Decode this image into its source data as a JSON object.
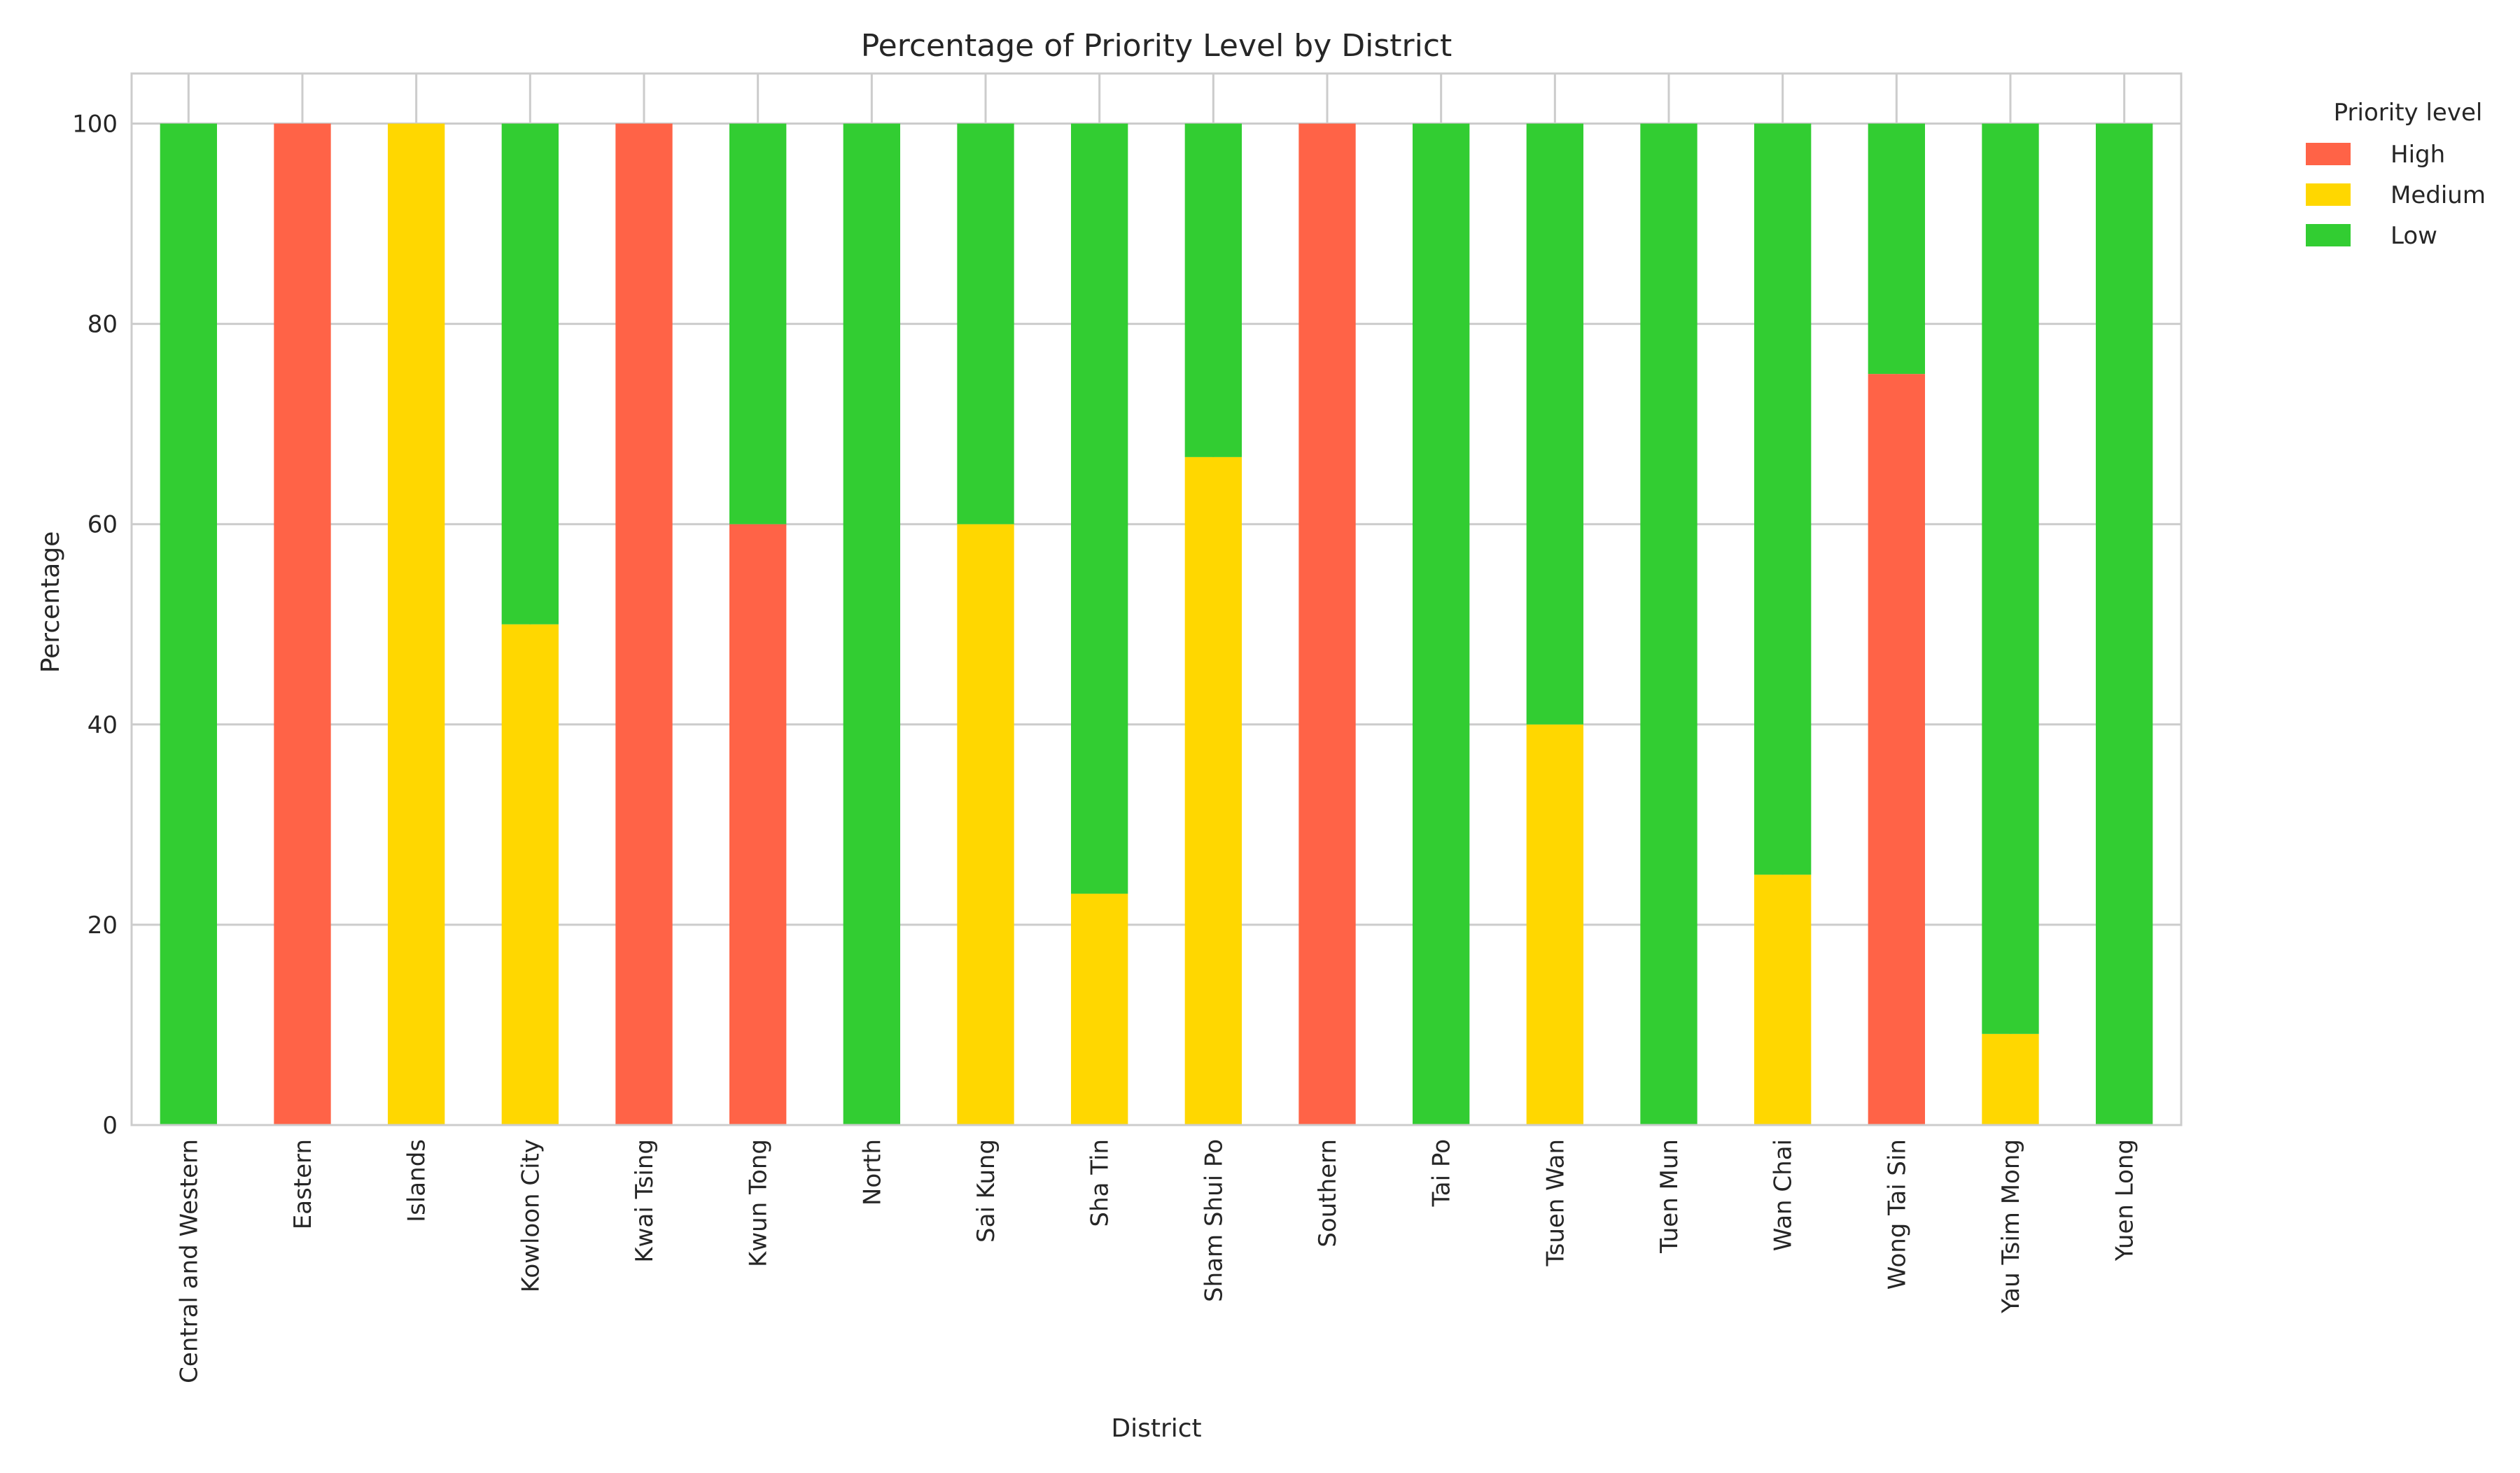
{
  "chart_data": {
    "type": "bar",
    "stacked": true,
    "title": "Percentage of Priority Level by District",
    "xlabel": "District",
    "ylabel": "Percentage",
    "ylim": [
      0,
      105
    ],
    "yticks": [
      0,
      20,
      40,
      60,
      80,
      100
    ],
    "grid": true,
    "legend": {
      "title": "Priority level",
      "placement": "outside-top-right"
    },
    "categories": [
      "Central and Western",
      "Eastern",
      "Islands",
      "Kowloon City",
      "Kwai Tsing",
      "Kwun Tong",
      "North",
      "Sai Kung",
      "Sha Tin",
      "Sham Shui Po",
      "Southern",
      "Tai Po",
      "Tsuen Wan",
      "Tuen Mun",
      "Wan Chai",
      "Wong Tai Sin",
      "Yau Tsim Mong",
      "Yuen Long"
    ],
    "series": [
      {
        "name": "High",
        "color": "#FF6347",
        "values": [
          0,
          100,
          0,
          0,
          100,
          60,
          0,
          0,
          0,
          0,
          100,
          0,
          0,
          0,
          0,
          75,
          0,
          0
        ]
      },
      {
        "name": "Medium",
        "color": "#FFD700",
        "values": [
          0,
          0,
          100,
          50,
          0,
          0,
          0,
          60,
          23.1,
          66.7,
          0,
          0,
          40,
          0,
          25,
          0,
          9.1,
          0
        ]
      },
      {
        "name": "Low",
        "color": "#32CD32",
        "values": [
          100,
          0,
          0,
          50,
          0,
          40,
          100,
          40,
          76.9,
          33.3,
          0,
          100,
          60,
          100,
          75,
          25,
          90.9,
          100
        ]
      }
    ]
  }
}
